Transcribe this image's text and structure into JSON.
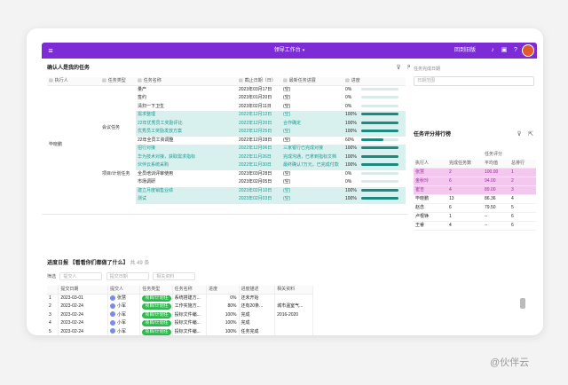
{
  "app": {
    "title": "领导工作台",
    "switch_label": "回到旧版"
  },
  "left_panel": {
    "title": "确认人是我的任务",
    "headers": [
      "执行人",
      "任务类型",
      "任务名称",
      "截止日期（日）",
      "最新任务进展",
      "进度"
    ],
    "executor": "毕晓鹏",
    "rows": [
      {
        "type": "",
        "name": "量产",
        "date": "2023年03月17日",
        "note": "(空)",
        "pct": "0%",
        "val": 0,
        "hl": false
      },
      {
        "type": "",
        "name": "签约",
        "date": "2023年01月20日",
        "note": "(空)",
        "pct": "0%",
        "val": 0,
        "hl": false
      },
      {
        "type": "",
        "name": "清扫一下卫生",
        "date": "2023年02月11日",
        "note": "(空)",
        "pct": "0%",
        "val": 0,
        "hl": false
      },
      {
        "type": "",
        "name": "需求整理",
        "date": "2022年12月12日",
        "note": "(空)",
        "pct": "100%",
        "val": 100,
        "hl": true
      },
      {
        "type": "会议任务",
        "name": "22年优秀员工奖励评比",
        "date": "2022年12月20日",
        "note": "合作确定",
        "pct": "100%",
        "val": 100,
        "hl": true
      },
      {
        "type": "",
        "name": "优秀员工奖励发放方案",
        "date": "2022年12月25日",
        "note": "(空)",
        "pct": "100%",
        "val": 100,
        "hl": true
      },
      {
        "type": "",
        "name": "22年全员工资调整",
        "date": "2022年12月28日",
        "note": "(空)",
        "pct": "60%",
        "val": 60,
        "hl": false
      },
      {
        "type": "",
        "name": "招行对接",
        "date": "2022年12月06日",
        "note": "三家银行已完成对接",
        "pct": "100%",
        "val": 100,
        "hl": true
      },
      {
        "type": "",
        "name": "华为技术对接，获取需求指标",
        "date": "2022年11月26日",
        "note": "完成沟通，已拿到指标文档",
        "pct": "100%",
        "val": 100,
        "hl": true
      },
      {
        "type": "项目/计划任务",
        "name": "伙伴云系统采购",
        "date": "2022年11月30日",
        "note": "最终确认7万元，已完成付款",
        "pct": "100%",
        "val": 100,
        "hl": true
      },
      {
        "type": "",
        "name": "全员培训评审使用",
        "date": "2023年03月28日",
        "note": "(空)",
        "pct": "0%",
        "val": 0,
        "hl": false
      },
      {
        "type": "",
        "name": "市场调研",
        "date": "2023年02月05日",
        "note": "(空)",
        "pct": "0%",
        "val": 0,
        "hl": false
      },
      {
        "type": "",
        "name": "建立月度销售业绩",
        "date": "2023年02月10日",
        "note": "(空)",
        "pct": "100%",
        "val": 100,
        "hl": true
      },
      {
        "type": "",
        "name": "测试",
        "date": "2023年02月03日",
        "note": "(空)",
        "pct": "100%",
        "val": 100,
        "hl": true
      }
    ]
  },
  "right_top": {
    "label": "任务完成日期",
    "placeholder": "日期范围"
  },
  "right_panel": {
    "title": "任务评分排行榜",
    "headers": [
      "执行人",
      "完成任务数",
      "平均值",
      "总排行"
    ],
    "group_header": "任务评分",
    "rows": [
      {
        "name": "张慧",
        "count": "2",
        "avg": "100.00",
        "rank": "1",
        "pink": true
      },
      {
        "name": "金秋玲",
        "count": "6",
        "avg": "94.00",
        "rank": "2",
        "pink": true
      },
      {
        "name": "崔吉",
        "count": "4",
        "avg": "89.00",
        "rank": "3",
        "pink": true
      },
      {
        "name": "毕晓鹏",
        "count": "13",
        "avg": "86.36",
        "rank": "4",
        "pink": false
      },
      {
        "name": "赵念",
        "count": "6",
        "avg": "79.50",
        "rank": "5",
        "pink": false
      },
      {
        "name": "卢根铮",
        "count": "1",
        "avg": "--",
        "rank": "6",
        "pink": false
      },
      {
        "name": "王睿",
        "count": "4",
        "avg": "--",
        "rank": "6",
        "pink": false
      }
    ]
  },
  "bottom_panel": {
    "title": "进度日报 【看看你们都做了什么】",
    "count": "共 49 条",
    "filter_label": "筛选",
    "filters": [
      "提交人",
      "提交日期",
      "相关资料"
    ],
    "headers": [
      "",
      "提交日期",
      "提交人",
      "任务类型",
      "任务名称",
      "进度",
      "进度描述",
      "相关资料"
    ],
    "rows": [
      {
        "idx": "1",
        "date": "2023-03-01",
        "user": "张慧",
        "type": "项目/计划任",
        "name": "系统搭建方...",
        "pct": "0%",
        "desc": "还未开始",
        "ref": ""
      },
      {
        "idx": "2",
        "date": "2023-02-24",
        "user": "小军",
        "type": "项目/计划任",
        "name": "工作实施方...",
        "pct": "80%",
        "desc": "还有20条...",
        "ref": "城市温室气..."
      },
      {
        "idx": "3",
        "date": "2023-02-24",
        "user": "小军",
        "type": "项目/计划任",
        "name": "投标文件编...",
        "pct": "100%",
        "desc": "完成",
        "ref": "2016-2020"
      },
      {
        "idx": "4",
        "date": "2023-02-24",
        "user": "小军",
        "type": "项目/计划任",
        "name": "投标文件编...",
        "pct": "100%",
        "desc": "完成",
        "ref": ""
      },
      {
        "idx": "5",
        "date": "2023-02-24",
        "user": "小军",
        "type": "项目/计划任",
        "name": "投标文件编...",
        "pct": "100%",
        "desc": "任务完成",
        "ref": ""
      }
    ]
  },
  "watermark": "@伙伴云"
}
